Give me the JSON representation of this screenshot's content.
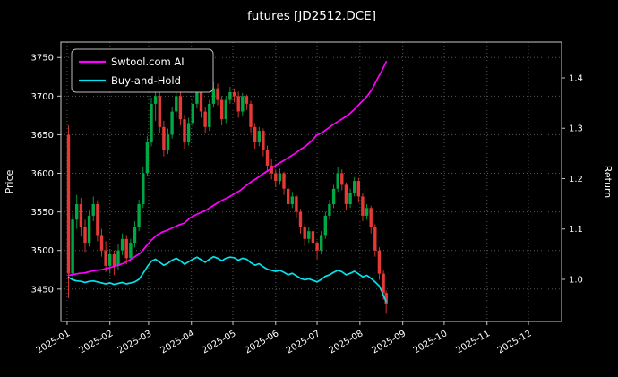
{
  "colors": {
    "up": "#00a846",
    "down": "#e53935",
    "grid": "#555555",
    "spine": "#c8c8c8",
    "text": "#ffffff",
    "background": "#000000"
  },
  "chart_data": {
    "type": "candlestick",
    "title": "futures [JD2512.DCE]",
    "ylabel_left": "Price",
    "ylabel_right": "Return",
    "grid": "dotted",
    "legend_position": "upper-left",
    "x_unit": "day_of_year_2025",
    "x_range": [
      -3.5,
      359
    ],
    "x_ticks": [
      {
        "day": 1,
        "label": "2025-01"
      },
      {
        "day": 32,
        "label": "2025-02"
      },
      {
        "day": 60,
        "label": "2025-03"
      },
      {
        "day": 91,
        "label": "2025-04"
      },
      {
        "day": 121,
        "label": "2025-05"
      },
      {
        "day": 152,
        "label": "2025-06"
      },
      {
        "day": 182,
        "label": "2025-07"
      },
      {
        "day": 213,
        "label": "2025-08"
      },
      {
        "day": 244,
        "label": "2025-09"
      },
      {
        "day": 274,
        "label": "2025-10"
      },
      {
        "day": 305,
        "label": "2025-11"
      },
      {
        "day": 335,
        "label": "2025-12"
      }
    ],
    "price_axis": {
      "ticks": [
        3450,
        3500,
        3550,
        3600,
        3650,
        3700,
        3750
      ],
      "range": [
        3408,
        3770
      ]
    },
    "return_axis": {
      "ticks": [
        1.0,
        1.1,
        1.2,
        1.3,
        1.4
      ],
      "range": [
        0.9164,
        1.4711
      ]
    },
    "candles": {
      "columns": [
        "day",
        "open",
        "high",
        "low",
        "close"
      ],
      "rows": [
        [
          2,
          3650,
          3662,
          3438,
          3470
        ],
        [
          5,
          3470,
          3548,
          3462,
          3540
        ],
        [
          8,
          3540,
          3572,
          3528,
          3560
        ],
        [
          11,
          3560,
          3568,
          3518,
          3530
        ],
        [
          14,
          3530,
          3540,
          3498,
          3510
        ],
        [
          17,
          3510,
          3552,
          3505,
          3545
        ],
        [
          20,
          3545,
          3570,
          3538,
          3560
        ],
        [
          23,
          3560,
          3565,
          3512,
          3520
        ],
        [
          26,
          3520,
          3528,
          3492,
          3500
        ],
        [
          29,
          3500,
          3512,
          3472,
          3480
        ],
        [
          32,
          3480,
          3502,
          3470,
          3495
        ],
        [
          35,
          3495,
          3500,
          3468,
          3480
        ],
        [
          38,
          3480,
          3508,
          3475,
          3500
        ],
        [
          41,
          3500,
          3522,
          3494,
          3515
        ],
        [
          44,
          3515,
          3520,
          3482,
          3490
        ],
        [
          47,
          3490,
          3515,
          3485,
          3510
        ],
        [
          50,
          3510,
          3538,
          3504,
          3530
        ],
        [
          53,
          3530,
          3566,
          3525,
          3560
        ],
        [
          56,
          3560,
          3608,
          3555,
          3600
        ],
        [
          59,
          3600,
          3648,
          3596,
          3640
        ],
        [
          62,
          3640,
          3698,
          3635,
          3690
        ],
        [
          65,
          3690,
          3712,
          3668,
          3700
        ],
        [
          68,
          3700,
          3705,
          3652,
          3660
        ],
        [
          71,
          3660,
          3668,
          3622,
          3630
        ],
        [
          74,
          3630,
          3658,
          3625,
          3650
        ],
        [
          77,
          3650,
          3686,
          3645,
          3680
        ],
        [
          80,
          3680,
          3708,
          3672,
          3700
        ],
        [
          83,
          3700,
          3706,
          3662,
          3670
        ],
        [
          86,
          3670,
          3676,
          3632,
          3640
        ],
        [
          89,
          3640,
          3672,
          3636,
          3665
        ],
        [
          92,
          3665,
          3696,
          3660,
          3690
        ],
        [
          95,
          3690,
          3712,
          3684,
          3705
        ],
        [
          98,
          3705,
          3710,
          3672,
          3680
        ],
        [
          101,
          3680,
          3686,
          3652,
          3660
        ],
        [
          104,
          3660,
          3695,
          3655,
          3690
        ],
        [
          107,
          3690,
          3718,
          3685,
          3710
        ],
        [
          110,
          3710,
          3716,
          3688,
          3695
        ],
        [
          113,
          3695,
          3700,
          3662,
          3670
        ],
        [
          116,
          3670,
          3700,
          3665,
          3695
        ],
        [
          119,
          3695,
          3712,
          3690,
          3705
        ],
        [
          122,
          3705,
          3710,
          3692,
          3700
        ],
        [
          125,
          3700,
          3706,
          3672,
          3680
        ],
        [
          128,
          3680,
          3704,
          3675,
          3700
        ],
        [
          131,
          3700,
          3702,
          3682,
          3690
        ],
        [
          134,
          3690,
          3694,
          3652,
          3660
        ],
        [
          137,
          3660,
          3665,
          3632,
          3640
        ],
        [
          140,
          3640,
          3660,
          3635,
          3655
        ],
        [
          143,
          3655,
          3658,
          3622,
          3630
        ],
        [
          146,
          3630,
          3636,
          3602,
          3610
        ],
        [
          149,
          3610,
          3618,
          3592,
          3600
        ],
        [
          152,
          3600,
          3605,
          3582,
          3590
        ],
        [
          155,
          3590,
          3606,
          3585,
          3600
        ],
        [
          158,
          3600,
          3602,
          3572,
          3580
        ],
        [
          161,
          3580,
          3584,
          3552,
          3560
        ],
        [
          164,
          3560,
          3576,
          3555,
          3570
        ],
        [
          167,
          3570,
          3572,
          3542,
          3550
        ],
        [
          170,
          3550,
          3554,
          3522,
          3530
        ],
        [
          173,
          3530,
          3534,
          3506,
          3515
        ],
        [
          176,
          3515,
          3530,
          3510,
          3525
        ],
        [
          179,
          3525,
          3528,
          3500,
          3510
        ],
        [
          182,
          3510,
          3512,
          3488,
          3500
        ],
        [
          185,
          3500,
          3525,
          3495,
          3520
        ],
        [
          188,
          3520,
          3550,
          3515,
          3545
        ],
        [
          191,
          3545,
          3566,
          3540,
          3560
        ],
        [
          194,
          3560,
          3585,
          3555,
          3580
        ],
        [
          197,
          3580,
          3608,
          3576,
          3600
        ],
        [
          200,
          3600,
          3605,
          3578,
          3585
        ],
        [
          203,
          3585,
          3588,
          3552,
          3560
        ],
        [
          206,
          3560,
          3580,
          3555,
          3575
        ],
        [
          209,
          3575,
          3595,
          3570,
          3590
        ],
        [
          212,
          3590,
          3594,
          3562,
          3570
        ],
        [
          215,
          3570,
          3574,
          3538,
          3545
        ],
        [
          218,
          3545,
          3560,
          3540,
          3555
        ],
        [
          221,
          3555,
          3558,
          3522,
          3530
        ],
        [
          224,
          3530,
          3534,
          3492,
          3500
        ],
        [
          227,
          3500,
          3504,
          3462,
          3470
        ],
        [
          230,
          3470,
          3474,
          3436,
          3445
        ],
        [
          232,
          3445,
          3448,
          3418,
          3430
        ]
      ]
    },
    "series": [
      {
        "name": "Swtool.com AI",
        "axis": "return",
        "color": "#ff00ff",
        "points": [
          [
            2,
            1.008
          ],
          [
            6,
            1.01
          ],
          [
            10,
            1.012
          ],
          [
            14,
            1.013
          ],
          [
            18,
            1.016
          ],
          [
            22,
            1.018
          ],
          [
            26,
            1.019
          ],
          [
            30,
            1.022
          ],
          [
            34,
            1.025
          ],
          [
            38,
            1.028
          ],
          [
            42,
            1.032
          ],
          [
            46,
            1.038
          ],
          [
            50,
            1.045
          ],
          [
            54,
            1.052
          ],
          [
            58,
            1.065
          ],
          [
            62,
            1.078
          ],
          [
            66,
            1.088
          ],
          [
            70,
            1.094
          ],
          [
            74,
            1.098
          ],
          [
            78,
            1.103
          ],
          [
            82,
            1.108
          ],
          [
            86,
            1.112
          ],
          [
            90,
            1.122
          ],
          [
            94,
            1.128
          ],
          [
            98,
            1.133
          ],
          [
            102,
            1.138
          ],
          [
            106,
            1.145
          ],
          [
            110,
            1.152
          ],
          [
            114,
            1.158
          ],
          [
            118,
            1.163
          ],
          [
            122,
            1.17
          ],
          [
            126,
            1.176
          ],
          [
            130,
            1.185
          ],
          [
            134,
            1.193
          ],
          [
            138,
            1.2
          ],
          [
            142,
            1.208
          ],
          [
            146,
            1.215
          ],
          [
            150,
            1.222
          ],
          [
            154,
            1.23
          ],
          [
            158,
            1.236
          ],
          [
            162,
            1.243
          ],
          [
            166,
            1.25
          ],
          [
            170,
            1.258
          ],
          [
            174,
            1.265
          ],
          [
            178,
            1.275
          ],
          [
            182,
            1.287
          ],
          [
            186,
            1.292
          ],
          [
            190,
            1.3
          ],
          [
            194,
            1.308
          ],
          [
            198,
            1.315
          ],
          [
            202,
            1.322
          ],
          [
            206,
            1.33
          ],
          [
            210,
            1.34
          ],
          [
            214,
            1.352
          ],
          [
            218,
            1.363
          ],
          [
            222,
            1.378
          ],
          [
            226,
            1.4
          ],
          [
            229,
            1.415
          ],
          [
            232,
            1.432
          ]
        ]
      },
      {
        "name": "Buy-and-Hold",
        "axis": "return",
        "color": "#00e5ee",
        "points": [
          [
            2,
            1.004
          ],
          [
            5,
            0.999
          ],
          [
            8,
            0.997
          ],
          [
            11,
            0.996
          ],
          [
            14,
            0.994
          ],
          [
            17,
            0.996
          ],
          [
            20,
            0.997
          ],
          [
            23,
            0.995
          ],
          [
            26,
            0.993
          ],
          [
            29,
            0.991
          ],
          [
            32,
            0.993
          ],
          [
            35,
            0.99
          ],
          [
            38,
            0.992
          ],
          [
            41,
            0.994
          ],
          [
            44,
            0.991
          ],
          [
            47,
            0.993
          ],
          [
            50,
            0.995
          ],
          [
            53,
            1.0
          ],
          [
            56,
            1.012
          ],
          [
            59,
            1.025
          ],
          [
            62,
            1.036
          ],
          [
            65,
            1.04
          ],
          [
            68,
            1.034
          ],
          [
            71,
            1.028
          ],
          [
            74,
            1.032
          ],
          [
            77,
            1.038
          ],
          [
            80,
            1.042
          ],
          [
            83,
            1.037
          ],
          [
            86,
            1.03
          ],
          [
            89,
            1.035
          ],
          [
            92,
            1.04
          ],
          [
            95,
            1.044
          ],
          [
            98,
            1.039
          ],
          [
            101,
            1.034
          ],
          [
            104,
            1.04
          ],
          [
            107,
            1.045
          ],
          [
            110,
            1.042
          ],
          [
            113,
            1.037
          ],
          [
            116,
            1.042
          ],
          [
            119,
            1.044
          ],
          [
            122,
            1.043
          ],
          [
            125,
            1.038
          ],
          [
            128,
            1.042
          ],
          [
            131,
            1.04
          ],
          [
            134,
            1.033
          ],
          [
            137,
            1.028
          ],
          [
            140,
            1.031
          ],
          [
            143,
            1.025
          ],
          [
            146,
            1.02
          ],
          [
            149,
            1.018
          ],
          [
            152,
            1.016
          ],
          [
            155,
            1.018
          ],
          [
            158,
            1.014
          ],
          [
            161,
            1.009
          ],
          [
            164,
            1.012
          ],
          [
            167,
            1.007
          ],
          [
            170,
            1.002
          ],
          [
            173,
            0.999
          ],
          [
            176,
            1.001
          ],
          [
            179,
            0.998
          ],
          [
            182,
            0.995
          ],
          [
            185,
            1.0
          ],
          [
            188,
            1.006
          ],
          [
            191,
            1.009
          ],
          [
            194,
            1.014
          ],
          [
            197,
            1.018
          ],
          [
            200,
            1.015
          ],
          [
            203,
            1.009
          ],
          [
            206,
            1.012
          ],
          [
            209,
            1.016
          ],
          [
            212,
            1.011
          ],
          [
            215,
            1.005
          ],
          [
            218,
            1.008
          ],
          [
            221,
            1.002
          ],
          [
            224,
            0.995
          ],
          [
            227,
            0.987
          ],
          [
            229,
            0.975
          ],
          [
            231,
            0.962
          ],
          [
            232,
            0.956
          ]
        ]
      }
    ]
  }
}
